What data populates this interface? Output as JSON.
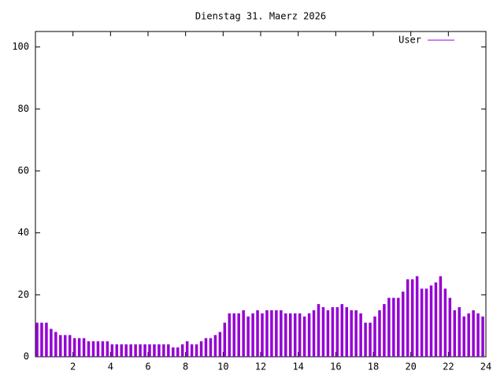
{
  "chart_data": {
    "type": "impulse",
    "title": "Dienstag 31. Maerz 2026",
    "x": [
      0,
      0.25,
      0.5,
      0.75,
      1,
      1.25,
      1.5,
      1.75,
      2,
      2.25,
      2.5,
      2.75,
      3,
      3.25,
      3.5,
      3.75,
      4,
      4.25,
      4.5,
      4.75,
      5,
      5.25,
      5.5,
      5.75,
      6,
      6.25,
      6.5,
      6.75,
      7,
      7.25,
      7.5,
      7.75,
      8,
      8.25,
      8.5,
      8.75,
      9,
      9.25,
      9.5,
      9.75,
      10,
      10.25,
      10.5,
      10.75,
      11,
      11.25,
      11.5,
      11.75,
      12,
      12.25,
      12.5,
      12.75,
      13,
      13.25,
      13.5,
      13.75,
      14,
      14.25,
      14.5,
      14.75,
      15,
      15.25,
      15.5,
      15.75,
      16,
      16.25,
      16.5,
      16.75,
      17,
      17.25,
      17.5,
      17.75,
      18,
      18.25,
      18.5,
      18.75,
      19,
      19.25,
      19.5,
      19.75,
      20,
      20.25,
      20.5,
      20.75,
      21,
      21.25,
      21.5,
      21.75,
      22,
      22.25,
      22.5,
      22.75,
      23,
      23.25,
      23.5,
      23.75
    ],
    "series": [
      {
        "name": "User",
        "color": "#9400d3",
        "values": [
          11,
          11,
          11,
          9,
          8,
          7,
          7,
          7,
          6,
          6,
          6,
          5,
          5,
          5,
          5,
          5,
          4,
          4,
          4,
          4,
          4,
          4,
          4,
          4,
          4,
          4,
          4,
          4,
          4,
          3,
          3,
          4,
          5,
          4,
          4,
          5,
          6,
          6,
          7,
          8,
          11,
          14,
          14,
          14,
          15,
          13,
          14,
          15,
          14,
          15,
          15,
          15,
          15,
          14,
          14,
          14,
          14,
          13,
          14,
          15,
          17,
          16,
          15,
          16,
          16,
          17,
          16,
          15,
          15,
          14,
          11,
          11,
          13,
          15,
          17,
          19,
          19,
          19,
          21,
          25,
          25,
          26,
          22,
          22,
          23,
          24,
          26,
          22,
          19,
          15,
          16,
          13,
          14,
          15,
          14,
          13
        ]
      }
    ],
    "xlim": [
      0,
      24
    ],
    "xticks": [
      2,
      4,
      6,
      8,
      10,
      12,
      14,
      16,
      18,
      20,
      22,
      24
    ],
    "ylim": [
      0,
      105
    ],
    "yticks": [
      0,
      20,
      40,
      60,
      80,
      100
    ],
    "legend": "top-right"
  }
}
